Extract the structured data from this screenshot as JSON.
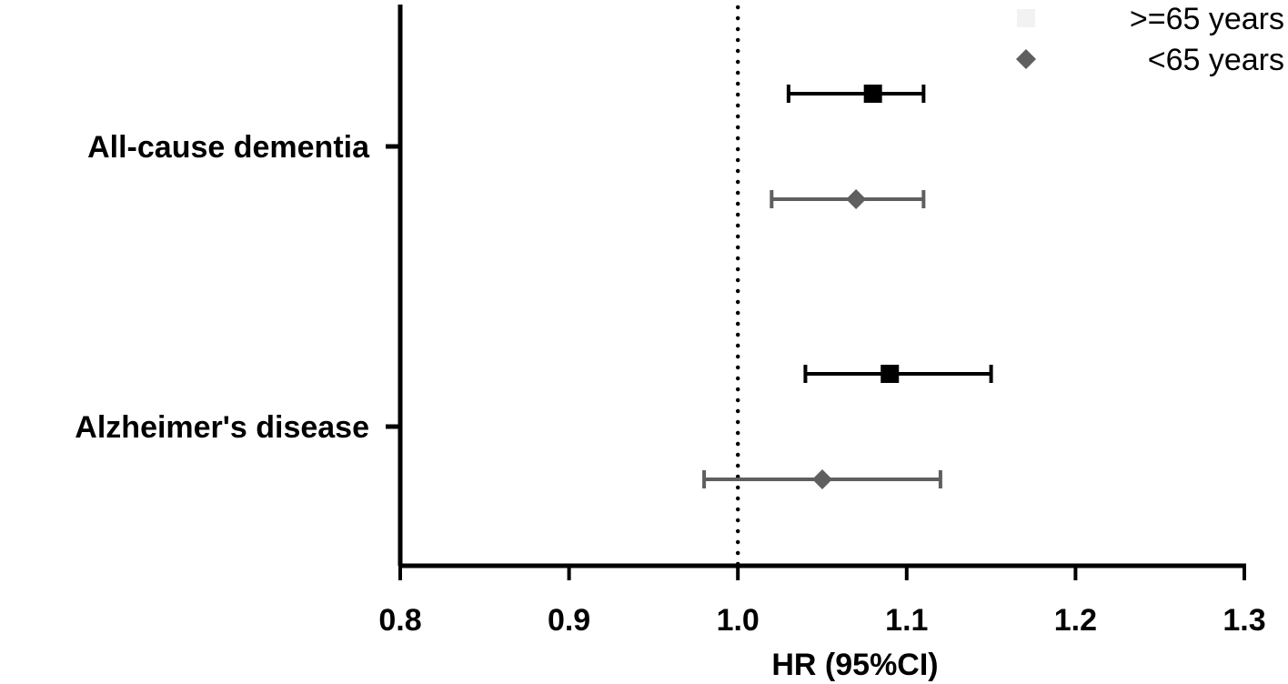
{
  "chart_data": {
    "type": "forest",
    "title": "",
    "xlabel": "HR (95%CI)",
    "ylabel": "",
    "xlim": [
      0.8,
      1.3
    ],
    "xticks": [
      0.8,
      0.9,
      1.0,
      1.1,
      1.2,
      1.3
    ],
    "xtick_labels": [
      "0.8",
      "0.9",
      "1.0",
      "1.1",
      "1.2",
      "1.3"
    ],
    "reference_line": 1.0,
    "reference_line_style": "dotted",
    "categories": [
      "All-cause dementia",
      "Alzheimer's disease"
    ],
    "series": [
      {
        "name": ">=65 years",
        "marker": "square",
        "color": "#000000",
        "values": [
          {
            "category": "All-cause dementia",
            "hr": 1.08,
            "lower": 1.03,
            "upper": 1.11
          },
          {
            "category": "Alzheimer's disease",
            "hr": 1.09,
            "lower": 1.04,
            "upper": 1.15
          }
        ]
      },
      {
        "name": "<65 years",
        "marker": "diamond",
        "color": "#5f5f5f",
        "values": [
          {
            "category": "All-cause dementia",
            "hr": 1.07,
            "lower": 1.02,
            "upper": 1.11
          },
          {
            "category": "Alzheimer's disease",
            "hr": 1.05,
            "lower": 0.98,
            "upper": 1.12
          }
        ]
      }
    ],
    "legend": {
      "position": "top-right",
      "entries": [
        {
          "label": ">=65 years",
          "marker": "square",
          "color": "#f2f2f2"
        },
        {
          "label": "<65 years",
          "marker": "diamond",
          "color": "#5f5f5f"
        }
      ]
    }
  }
}
